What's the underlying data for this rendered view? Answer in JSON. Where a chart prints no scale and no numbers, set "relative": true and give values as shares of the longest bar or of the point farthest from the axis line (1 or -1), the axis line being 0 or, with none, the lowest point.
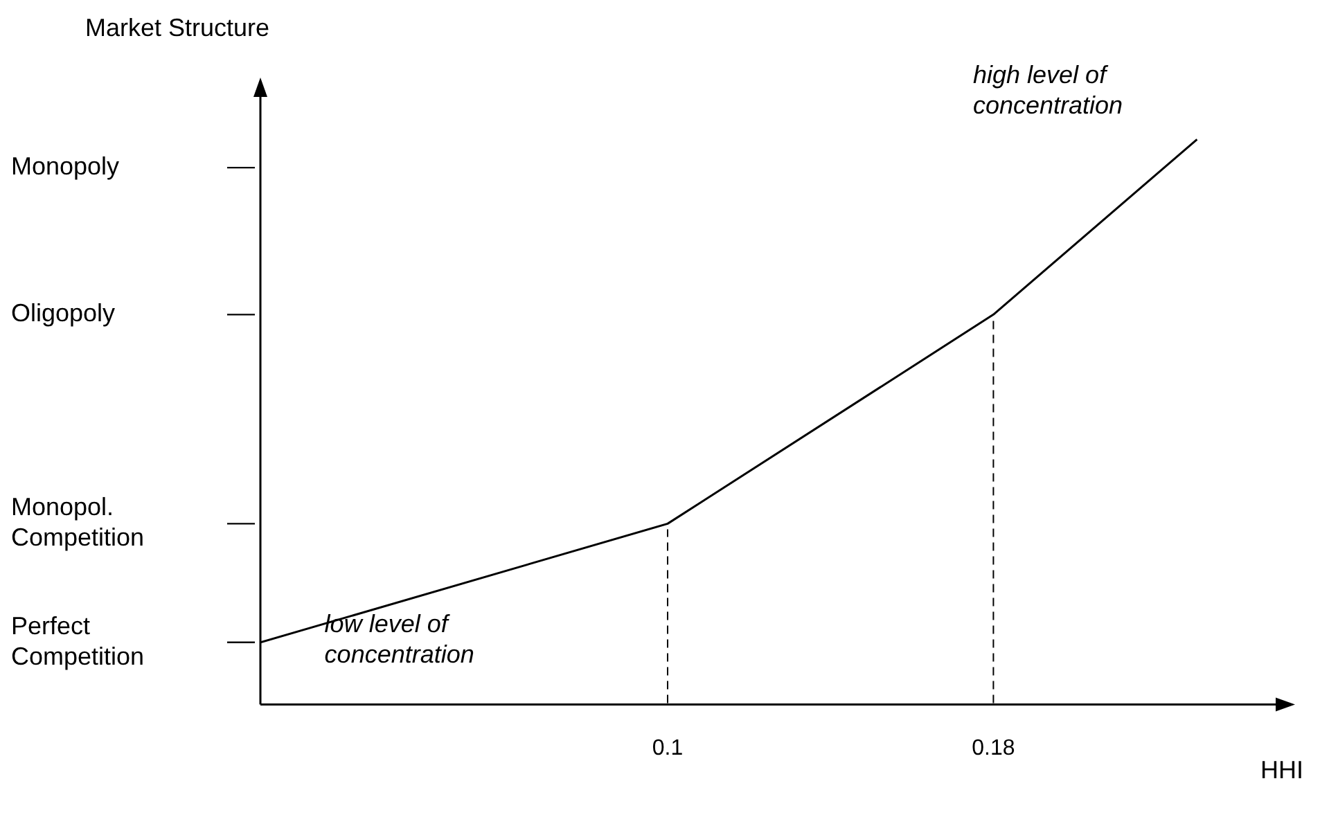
{
  "chart_data": {
    "type": "line",
    "ylabel": "Market Structure",
    "xlabel": "HHI",
    "x": [
      0,
      0.1,
      0.18,
      0.23
    ],
    "series": [
      {
        "color": "#000000",
        "values": [
          0.11,
          0.32,
          0.69,
          1
        ]
      }
    ],
    "relative": true,
    "xlim": [
      0,
      0.25
    ],
    "xticks": [
      0.1,
      0.18
    ],
    "ref_lines": [
      {
        "axis": "x",
        "value": 0.1,
        "line_style": "dashed"
      },
      {
        "axis": "x",
        "value": 0.18,
        "line_style": "dashed"
      }
    ],
    "annotations": [
      "low level of\nconcentration",
      "high level of\nconcentration",
      "Perfect\nCompetition",
      "Monopol.\nCompetition",
      "Oligopoly",
      "Monopoly"
    ],
    "grid": false,
    "legend": false,
    "marker": "none",
    "line_style": "solid"
  }
}
